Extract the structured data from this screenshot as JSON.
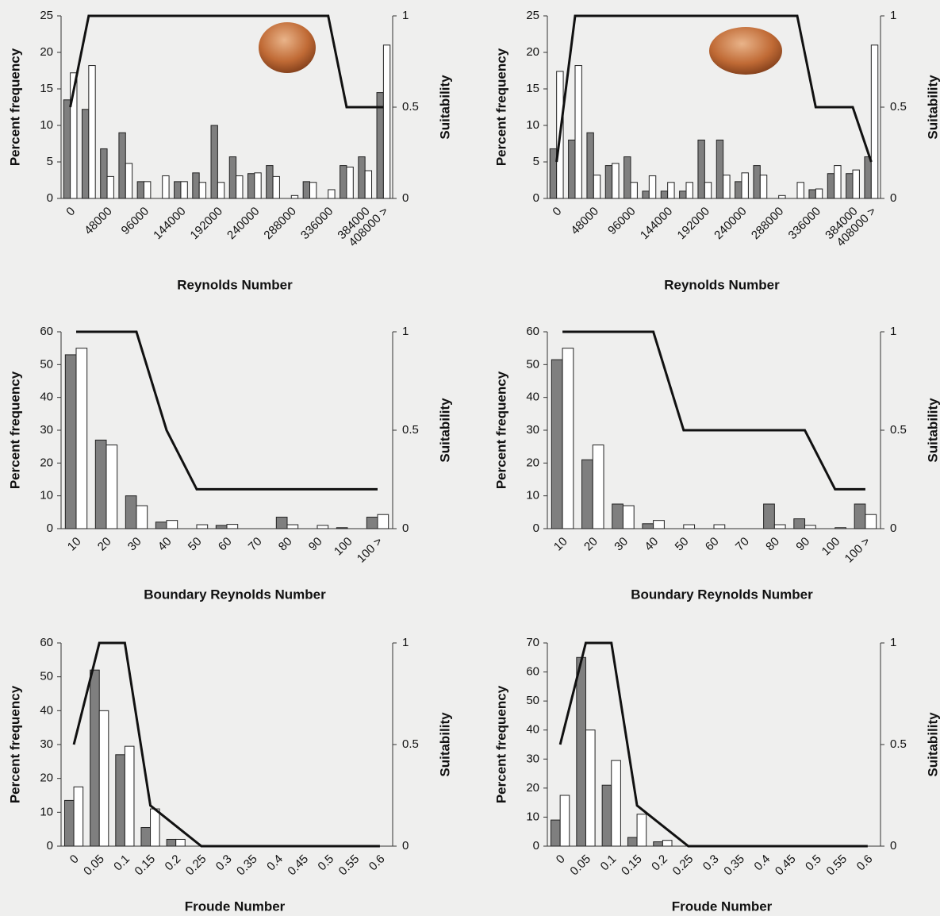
{
  "chart_data": [
    {
      "type": "bar",
      "xlabel": "Reynolds Number",
      "ylabel": "Percent frequency",
      "y2label": "Suitability",
      "categories": [
        "0",
        null,
        "48000",
        null,
        "96000",
        null,
        "144000",
        null,
        "192000",
        null,
        "240000",
        null,
        "288000",
        null,
        "336000",
        null,
        "384000",
        "408000 >"
      ],
      "series": [
        {
          "color": "#7f7f7f",
          "values": [
            13.5,
            12.2,
            6.8,
            9,
            2.3,
            0,
            2.3,
            3.5,
            10,
            5.7,
            3.4,
            4.5,
            0,
            2.3,
            0,
            4.5,
            5.7,
            14.5
          ]
        },
        {
          "color": "#ffffff",
          "values": [
            17.2,
            18.2,
            3,
            4.8,
            2.3,
            3.1,
            2.3,
            2.2,
            2.2,
            3.1,
            3.5,
            3,
            0.4,
            2.2,
            1.2,
            4.3,
            3.8,
            21
          ]
        },
        {
          "type": "line",
          "axis": "y2",
          "color": "#111111",
          "values": [
            0.5,
            1,
            1,
            1,
            1,
            1,
            1,
            1,
            1,
            1,
            1,
            1,
            1,
            1,
            1,
            0.5,
            0.5,
            0.5
          ]
        }
      ],
      "ylim": [
        0,
        25
      ],
      "yticks": [
        0,
        5,
        10,
        15,
        20,
        25
      ],
      "y2lim": [
        0,
        1
      ],
      "y2ticks": [
        0,
        0.5,
        1
      ]
    },
    {
      "type": "bar",
      "xlabel": "Reynolds Number",
      "ylabel": "Percent frequency",
      "y2label": "Suitability",
      "categories": [
        "0",
        null,
        "48000",
        null,
        "96000",
        null,
        "144000",
        null,
        "192000",
        null,
        "240000",
        null,
        "288000",
        null,
        "336000",
        null,
        "384000",
        "408000 >"
      ],
      "series": [
        {
          "color": "#7f7f7f",
          "values": [
            6.8,
            8,
            9,
            4.5,
            5.7,
            1,
            1,
            1,
            8,
            8,
            2.3,
            4.5,
            0,
            0,
            1.2,
            3.4,
            3.4,
            5.7
          ]
        },
        {
          "color": "#ffffff",
          "values": [
            17.4,
            18.2,
            3.2,
            4.8,
            2.2,
            3.1,
            2.2,
            2.2,
            2.2,
            3.2,
            3.5,
            3.2,
            0.4,
            2.2,
            1.3,
            4.5,
            3.9,
            21
          ]
        },
        {
          "type": "line",
          "axis": "y2",
          "color": "#111111",
          "values": [
            0.2,
            1,
            1,
            1,
            1,
            1,
            1,
            1,
            1,
            1,
            1,
            1,
            1,
            1,
            0.5,
            0.5,
            0.5,
            0.2
          ]
        }
      ],
      "ylim": [
        0,
        25
      ],
      "yticks": [
        0,
        5,
        10,
        15,
        20,
        25
      ],
      "y2lim": [
        0,
        1
      ],
      "y2ticks": [
        0,
        0.5,
        1
      ]
    },
    {
      "type": "bar",
      "xlabel": "Boundary Reynolds Number",
      "ylabel": "Percent frequency",
      "y2label": "Suitability",
      "categories": [
        "10",
        "20",
        "30",
        "40",
        "50",
        "60",
        "70",
        "80",
        "90",
        "100",
        "100 >"
      ],
      "series": [
        {
          "color": "#7f7f7f",
          "values": [
            53,
            27,
            10,
            2,
            0,
            1,
            0,
            3.5,
            0,
            0.3,
            3.5
          ]
        },
        {
          "color": "#ffffff",
          "values": [
            55,
            25.5,
            7,
            2.5,
            1.2,
            1.3,
            0,
            1.2,
            1,
            0,
            4.3
          ]
        },
        {
          "type": "line",
          "axis": "y2",
          "color": "#111111",
          "values": [
            1,
            1,
            1,
            0.5,
            0.2,
            0.2,
            0.2,
            0.2,
            0.2,
            0.2,
            0.2
          ]
        }
      ],
      "ylim": [
        0,
        60
      ],
      "yticks": [
        0,
        10,
        20,
        30,
        40,
        50,
        60
      ],
      "y2lim": [
        0,
        1
      ],
      "y2ticks": [
        0,
        0.5,
        1
      ]
    },
    {
      "type": "bar",
      "xlabel": "Boundary Reynolds Number",
      "ylabel": "Percent frequency",
      "y2label": "Suitability",
      "categories": [
        "10",
        "20",
        "30",
        "40",
        "50",
        "60",
        "70",
        "80",
        "90",
        "100",
        "100 >"
      ],
      "series": [
        {
          "color": "#7f7f7f",
          "values": [
            51.5,
            21,
            7.5,
            1.5,
            0,
            0,
            0,
            7.5,
            3,
            0,
            7.5
          ]
        },
        {
          "color": "#ffffff",
          "values": [
            55,
            25.5,
            7,
            2.5,
            1.2,
            1.2,
            0,
            1.2,
            1,
            0.3,
            4.3
          ]
        },
        {
          "type": "line",
          "axis": "y2",
          "color": "#111111",
          "values": [
            1,
            1,
            1,
            1,
            0.5,
            0.5,
            0.5,
            0.5,
            0.5,
            0.2,
            0.2
          ]
        }
      ],
      "ylim": [
        0,
        60
      ],
      "yticks": [
        0,
        10,
        20,
        30,
        40,
        50,
        60
      ],
      "y2lim": [
        0,
        1
      ],
      "y2ticks": [
        0,
        0.5,
        1
      ]
    },
    {
      "type": "bar",
      "xlabel": "Froude Number",
      "ylabel": "Percent frequency",
      "y2label": "Suitability",
      "categories": [
        "0",
        "0.05",
        "0.1",
        "0.15",
        "0.2",
        "0.25",
        "0.3",
        "0.35",
        "0.4",
        "0.45",
        "0.5",
        "0.55",
        "0.6"
      ],
      "series": [
        {
          "color": "#7f7f7f",
          "values": [
            13.5,
            52,
            27,
            5.5,
            2,
            0,
            0,
            0,
            0,
            0,
            0,
            0,
            0
          ]
        },
        {
          "color": "#ffffff",
          "values": [
            17.5,
            40,
            29.5,
            11,
            2,
            0,
            0,
            0,
            0,
            0,
            0,
            0,
            0
          ]
        },
        {
          "type": "line",
          "axis": "y2",
          "color": "#111111",
          "values": [
            0.5,
            1,
            1,
            0.2,
            0.1,
            0,
            0,
            0,
            0,
            0,
            0,
            0,
            0
          ]
        }
      ],
      "ylim": [
        0,
        60
      ],
      "yticks": [
        0,
        10,
        20,
        30,
        40,
        50,
        60
      ],
      "y2lim": [
        0,
        1
      ],
      "y2ticks": [
        0,
        0.5,
        1
      ]
    },
    {
      "type": "bar",
      "xlabel": "Froude Number",
      "ylabel": "Percent frequency",
      "y2label": "Suitability",
      "categories": [
        "0",
        "0.05",
        "0.1",
        "0.15",
        "0.2",
        "0.25",
        "0.3",
        "0.35",
        "0.4",
        "0.45",
        "0.5",
        "0.55",
        "0.6"
      ],
      "series": [
        {
          "color": "#7f7f7f",
          "values": [
            9,
            65,
            21,
            3,
            1.5,
            0,
            0,
            0,
            0,
            0,
            0,
            0,
            0
          ]
        },
        {
          "color": "#ffffff",
          "values": [
            17.5,
            40,
            29.5,
            11,
            2,
            0,
            0,
            0,
            0,
            0,
            0,
            0,
            0
          ]
        },
        {
          "type": "line",
          "axis": "y2",
          "color": "#111111",
          "values": [
            0.5,
            1,
            1,
            0.2,
            0.1,
            0,
            0,
            0,
            0,
            0,
            0,
            0,
            0
          ]
        }
      ],
      "ylim": [
        0,
        70
      ],
      "yticks": [
        0,
        10,
        20,
        30,
        40,
        50,
        60,
        70
      ],
      "y2lim": [
        0,
        1
      ],
      "y2ticks": [
        0,
        0.5,
        1
      ]
    }
  ]
}
